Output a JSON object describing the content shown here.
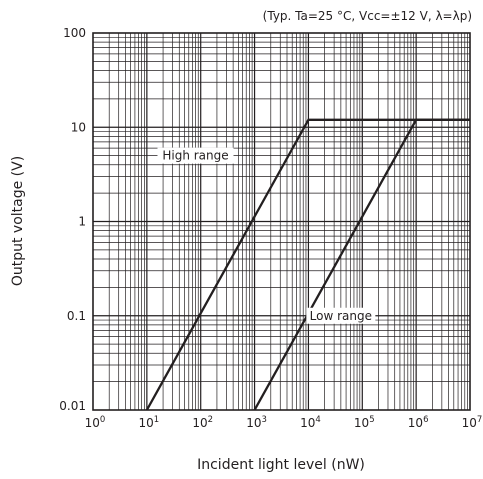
{
  "chart_data": {
    "type": "line",
    "note": "(Typ. Ta=25 °C, Vcc=±12 V, λ=λp)",
    "xlabel": "Incident light level (nW)",
    "ylabel": "Output voltage (V)",
    "x_scale": "log",
    "y_scale": "log",
    "xlim": [
      1,
      10000000
    ],
    "ylim": [
      0.01,
      100
    ],
    "grid": true,
    "x_ticks": [
      {
        "base": "10",
        "exp": "0",
        "value": 1
      },
      {
        "base": "10",
        "exp": "1",
        "value": 10
      },
      {
        "base": "10",
        "exp": "2",
        "value": 100
      },
      {
        "base": "10",
        "exp": "3",
        "value": 1000
      },
      {
        "base": "10",
        "exp": "4",
        "value": 10000
      },
      {
        "base": "10",
        "exp": "5",
        "value": 100000
      },
      {
        "base": "10",
        "exp": "6",
        "value": 1000000
      },
      {
        "base": "10",
        "exp": "7",
        "value": 10000000
      }
    ],
    "y_ticks": [
      {
        "label": "100",
        "value": 100
      },
      {
        "label": "10",
        "value": 10
      },
      {
        "label": "1",
        "value": 1
      },
      {
        "label": "0.1",
        "value": 0.1
      },
      {
        "label": "0.01",
        "value": 0.01
      }
    ],
    "series": [
      {
        "name": "High range",
        "x": [
          10,
          10000,
          10000000
        ],
        "y": [
          0.01,
          12,
          12
        ],
        "label_at": {
          "x": 80,
          "y": 5
        }
      },
      {
        "name": "Low range",
        "x": [
          1000,
          1000000,
          10000000
        ],
        "y": [
          0.01,
          12,
          12
        ],
        "label_at": {
          "x": 40000,
          "y": 0.1
        }
      }
    ]
  }
}
